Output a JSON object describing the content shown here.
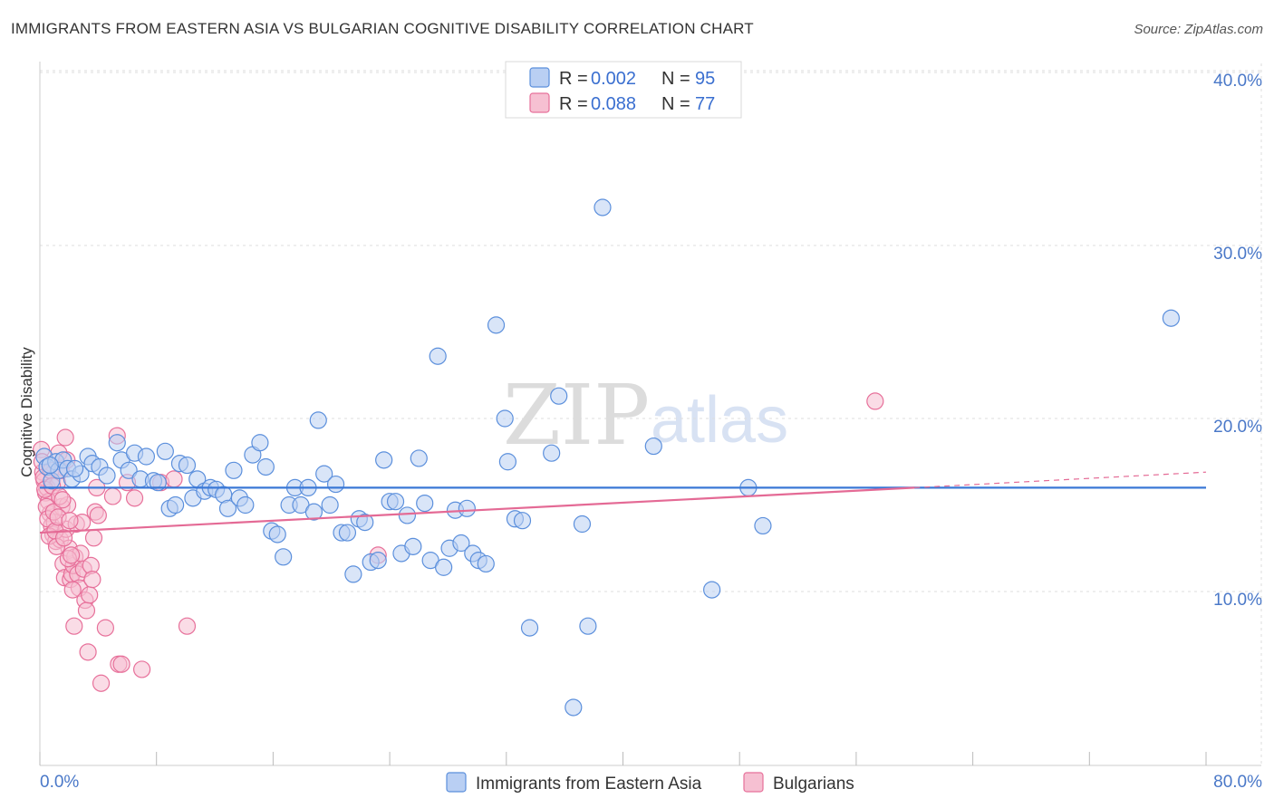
{
  "title": "IMMIGRANTS FROM EASTERN ASIA VS BULGARIAN COGNITIVE DISABILITY CORRELATION CHART",
  "source": "Source: ZipAtlas.com",
  "watermark": "ZIPatlas",
  "colors": {
    "blue": "#5b8fdc",
    "blue_fill": "#b9cff3",
    "pink": "#e7709a",
    "pink_fill": "#f6c0d2",
    "blue_line": "#3a78d6",
    "pink_line": "#e46a95",
    "tick_text": "#4a78c8"
  },
  "legend": {
    "r_label": "R =",
    "n_label": "N =",
    "blue": {
      "r": "0.002",
      "n": "95"
    },
    "pink": {
      "r": "0.088",
      "n": "77"
    }
  },
  "chart_data": {
    "type": "scatter",
    "xlabel": "",
    "ylabel": "Cognitive Disability",
    "xlim": [
      0,
      80
    ],
    "ylim": [
      0,
      40
    ],
    "x_tick_labels": [
      "0.0%",
      "80.0%"
    ],
    "y_tick_labels": [
      "10.0%",
      "20.0%",
      "30.0%",
      "40.0%"
    ],
    "y_ticks": [
      10,
      20,
      30,
      40
    ],
    "series": [
      {
        "name": "Immigrants from Eastern Asia",
        "color": "blue",
        "trend": {
          "x0": 0,
          "y0": 16.0,
          "x1": 80,
          "y1": 16.0
        },
        "points": [
          [
            0.3,
            17.8
          ],
          [
            0.5,
            17.2
          ],
          [
            0.8,
            16.4
          ],
          [
            1.1,
            17.5
          ],
          [
            1.3,
            17.0
          ],
          [
            1.6,
            17.6
          ],
          [
            1.9,
            17.1
          ],
          [
            2.2,
            16.5
          ],
          [
            2.8,
            16.8
          ],
          [
            3.3,
            17.8
          ],
          [
            3.6,
            17.4
          ],
          [
            4.1,
            17.2
          ],
          [
            4.6,
            16.7
          ],
          [
            5.3,
            18.6
          ],
          [
            5.6,
            17.6
          ],
          [
            6.1,
            17.0
          ],
          [
            6.5,
            18.0
          ],
          [
            6.9,
            16.5
          ],
          [
            7.3,
            17.8
          ],
          [
            7.8,
            16.4
          ],
          [
            8.1,
            16.3
          ],
          [
            8.6,
            18.1
          ],
          [
            8.9,
            14.8
          ],
          [
            9.3,
            15.0
          ],
          [
            9.6,
            17.4
          ],
          [
            10.1,
            17.3
          ],
          [
            10.5,
            15.4
          ],
          [
            10.8,
            16.5
          ],
          [
            11.3,
            15.8
          ],
          [
            11.7,
            16.0
          ],
          [
            12.1,
            15.9
          ],
          [
            12.6,
            15.6
          ],
          [
            12.9,
            14.8
          ],
          [
            13.3,
            17.0
          ],
          [
            13.7,
            15.4
          ],
          [
            14.1,
            15.0
          ],
          [
            14.6,
            17.9
          ],
          [
            15.1,
            18.6
          ],
          [
            15.5,
            17.2
          ],
          [
            15.9,
            13.5
          ],
          [
            16.3,
            13.3
          ],
          [
            16.7,
            12.0
          ],
          [
            17.1,
            15.0
          ],
          [
            17.5,
            16.0
          ],
          [
            17.9,
            15.0
          ],
          [
            18.4,
            16.0
          ],
          [
            18.8,
            14.6
          ],
          [
            19.1,
            19.9
          ],
          [
            19.5,
            16.8
          ],
          [
            19.9,
            15.0
          ],
          [
            20.3,
            16.2
          ],
          [
            20.7,
            13.4
          ],
          [
            21.1,
            13.4
          ],
          [
            21.5,
            11.0
          ],
          [
            21.9,
            14.2
          ],
          [
            22.3,
            14.0
          ],
          [
            22.7,
            11.7
          ],
          [
            23.2,
            11.8
          ],
          [
            23.6,
            17.6
          ],
          [
            24.0,
            15.2
          ],
          [
            24.4,
            15.2
          ],
          [
            24.8,
            12.2
          ],
          [
            25.2,
            14.4
          ],
          [
            25.6,
            12.6
          ],
          [
            26.0,
            17.7
          ],
          [
            26.4,
            15.1
          ],
          [
            26.8,
            11.8
          ],
          [
            27.3,
            23.6
          ],
          [
            27.7,
            11.4
          ],
          [
            28.1,
            12.5
          ],
          [
            28.5,
            14.7
          ],
          [
            28.9,
            12.8
          ],
          [
            29.3,
            14.8
          ],
          [
            29.7,
            12.2
          ],
          [
            30.1,
            11.8
          ],
          [
            30.6,
            11.6
          ],
          [
            31.3,
            25.4
          ],
          [
            31.9,
            20.0
          ],
          [
            32.1,
            17.5
          ],
          [
            32.6,
            14.2
          ],
          [
            33.1,
            14.1
          ],
          [
            33.6,
            7.9
          ],
          [
            35.1,
            18.0
          ],
          [
            35.6,
            21.3
          ],
          [
            36.6,
            3.3
          ],
          [
            37.2,
            13.9
          ],
          [
            37.6,
            8.0
          ],
          [
            38.6,
            32.2
          ],
          [
            42.1,
            18.4
          ],
          [
            46.1,
            10.1
          ],
          [
            48.6,
            16.0
          ],
          [
            49.6,
            13.8
          ],
          [
            77.6,
            25.8
          ],
          [
            0.7,
            17.3
          ],
          [
            2.4,
            17.1
          ]
        ]
      },
      {
        "name": "Bulgarians",
        "color": "pink",
        "trend": {
          "x0": 0,
          "y0": 13.4,
          "x1": 60,
          "y1": 16.0
        },
        "trend_dashed": {
          "x0": 60,
          "y0": 16.0,
          "x1": 80,
          "y1": 16.9
        },
        "points": [
          [
            0.1,
            18.2
          ],
          [
            0.2,
            16.9
          ],
          [
            0.3,
            16.4
          ],
          [
            0.4,
            15.7
          ],
          [
            0.5,
            16.0
          ],
          [
            0.6,
            15.2
          ],
          [
            0.7,
            14.5
          ],
          [
            0.8,
            13.8
          ],
          [
            0.9,
            13.3
          ],
          [
            1.0,
            14.0
          ],
          [
            1.1,
            12.9
          ],
          [
            1.2,
            16.3
          ],
          [
            1.3,
            18.0
          ],
          [
            1.4,
            13.0
          ],
          [
            1.5,
            14.9
          ],
          [
            1.6,
            11.6
          ],
          [
            1.7,
            10.8
          ],
          [
            1.8,
            13.6
          ],
          [
            1.9,
            15.0
          ],
          [
            2.0,
            12.5
          ],
          [
            2.1,
            10.7
          ],
          [
            2.2,
            11.0
          ],
          [
            2.3,
            11.5
          ],
          [
            2.4,
            12.0
          ],
          [
            2.5,
            13.9
          ],
          [
            2.6,
            11.0
          ],
          [
            2.7,
            10.2
          ],
          [
            2.8,
            12.2
          ],
          [
            2.9,
            14.0
          ],
          [
            3.0,
            11.3
          ],
          [
            3.1,
            9.5
          ],
          [
            3.2,
            8.9
          ],
          [
            3.3,
            6.5
          ],
          [
            3.4,
            9.8
          ],
          [
            3.5,
            11.5
          ],
          [
            3.6,
            10.7
          ],
          [
            3.7,
            13.1
          ],
          [
            3.8,
            14.6
          ],
          [
            3.9,
            16.0
          ],
          [
            4.0,
            14.4
          ],
          [
            4.2,
            4.7
          ],
          [
            4.5,
            7.9
          ],
          [
            5.0,
            15.5
          ],
          [
            5.3,
            19.0
          ],
          [
            5.4,
            5.8
          ],
          [
            5.6,
            5.8
          ],
          [
            6.0,
            16.3
          ],
          [
            6.5,
            15.4
          ],
          [
            7.0,
            5.5
          ],
          [
            8.3,
            16.3
          ],
          [
            9.2,
            16.5
          ],
          [
            10.1,
            8.0
          ],
          [
            23.2,
            12.1
          ],
          [
            57.3,
            21.0
          ],
          [
            0.15,
            17.5
          ],
          [
            0.25,
            16.6
          ],
          [
            0.35,
            15.9
          ],
          [
            0.45,
            14.9
          ],
          [
            0.55,
            14.2
          ],
          [
            0.65,
            13.2
          ],
          [
            0.75,
            17.0
          ],
          [
            0.85,
            16.1
          ],
          [
            0.95,
            14.6
          ],
          [
            1.05,
            13.5
          ],
          [
            1.15,
            12.6
          ],
          [
            1.25,
            14.3
          ],
          [
            1.35,
            15.5
          ],
          [
            1.45,
            17.0
          ],
          [
            1.55,
            15.3
          ],
          [
            1.65,
            13.1
          ],
          [
            1.75,
            18.9
          ],
          [
            1.85,
            17.6
          ],
          [
            1.95,
            11.9
          ],
          [
            2.05,
            14.1
          ],
          [
            2.15,
            12.1
          ],
          [
            2.25,
            10.1
          ],
          [
            2.35,
            8.0
          ]
        ]
      }
    ]
  },
  "bottom_legend": {
    "blue_label": "Immigrants from Eastern Asia",
    "pink_label": "Bulgarians"
  }
}
